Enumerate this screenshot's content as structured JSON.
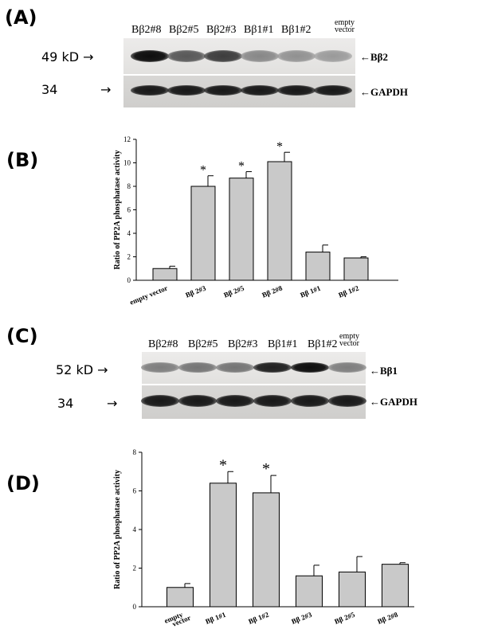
{
  "panels": {
    "A": {
      "label": "(A)",
      "lanes": [
        "Bβ2#8",
        "Bβ2#5",
        "Bβ2#3",
        "Bβ1#1",
        "Bβ1#2"
      ],
      "last_lane": [
        "empty",
        "vector"
      ],
      "mw_top": "49 kD →",
      "mw_bottom": "34",
      "mw_bottom_arrow": "→",
      "band_top": "←Bβ2",
      "band_bottom": "←GAPDH",
      "band_intensity_top": [
        0.95,
        0.55,
        0.7,
        0.3,
        0.25,
        0.2
      ],
      "band_intensity_bottom": [
        0.9,
        0.9,
        0.9,
        0.9,
        0.9,
        0.9
      ]
    },
    "B": {
      "label": "(B)"
    },
    "C": {
      "label": "(C)",
      "lanes": [
        "Bβ2#8",
        "Bβ2#5",
        "Bβ2#3",
        "Bβ1#1",
        "Bβ1#2"
      ],
      "last_lane": [
        "empty",
        "vector"
      ],
      "mw_top": "52 kD →",
      "mw_bottom": "34",
      "mw_bottom_arrow": "→",
      "band_top": "←Bβ1",
      "band_bottom": "←GAPDH",
      "band_intensity_top": [
        0.35,
        0.4,
        0.4,
        0.85,
        0.95,
        0.35
      ],
      "band_intensity_bottom": [
        0.9,
        0.9,
        0.9,
        0.9,
        0.9,
        0.9
      ]
    },
    "D": {
      "label": "(D)"
    }
  },
  "chart_data": [
    {
      "type": "bar",
      "panel": "B",
      "ylabel": "Ratio of PP2A phosphatase activity",
      "ylim": [
        0,
        12
      ],
      "yticks": [
        0,
        2,
        4,
        6,
        8,
        10,
        12
      ],
      "categories": [
        [
          "empty vector"
        ],
        [
          "Bβ 2#3"
        ],
        [
          "Bβ 2#5"
        ],
        [
          "Bβ 2#8"
        ],
        [
          "Bβ 1#1"
        ],
        [
          "Bβ 1#2"
        ]
      ],
      "values": [
        1.0,
        8.0,
        8.7,
        10.1,
        2.4,
        1.9
      ],
      "errors": [
        0.2,
        0.9,
        0.55,
        0.8,
        0.6,
        0.1
      ],
      "significant": [
        false,
        true,
        true,
        true,
        false,
        false
      ],
      "marker": "*"
    },
    {
      "type": "bar",
      "panel": "D",
      "ylabel": "Ratio of PP2A phosphatase activity",
      "ylim": [
        0,
        8
      ],
      "yticks": [
        0,
        2,
        4,
        6,
        8
      ],
      "categories": [
        [
          "empty",
          "vector"
        ],
        [
          "Bβ 1#1"
        ],
        [
          "Bβ 1#2"
        ],
        [
          "Bβ 2#3"
        ],
        [
          "Bβ 2#5"
        ],
        [
          "Bβ 2#8"
        ]
      ],
      "values": [
        1.0,
        6.4,
        5.9,
        1.6,
        1.8,
        2.2
      ],
      "errors": [
        0.2,
        0.6,
        0.9,
        0.55,
        0.8,
        0.08
      ],
      "significant": [
        false,
        true,
        true,
        false,
        false,
        false
      ],
      "marker": "*"
    }
  ]
}
